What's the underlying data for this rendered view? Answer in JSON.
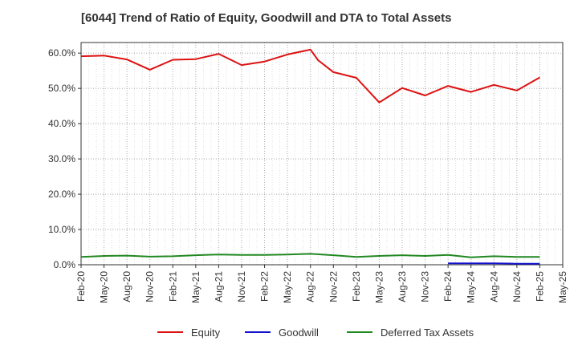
{
  "chart_data": {
    "type": "line",
    "title": "[6044]  Trend of Ratio of Equity, Goodwill and DTA to Total Assets",
    "xlabel": "",
    "ylabel": "",
    "ylim": [
      0,
      63
    ],
    "yticks": [
      0,
      10,
      20,
      30,
      40,
      50,
      60
    ],
    "ytick_labels": [
      "0.0%",
      "10.0%",
      "20.0%",
      "30.0%",
      "40.0%",
      "50.0%",
      "60.0%"
    ],
    "xtick_labels": [
      "Feb-20",
      "May-20",
      "Aug-20",
      "Nov-20",
      "Feb-21",
      "May-21",
      "Aug-21",
      "Nov-21",
      "Feb-22",
      "May-22",
      "Aug-22",
      "Nov-22",
      "Feb-23",
      "May-23",
      "Aug-23",
      "Nov-23",
      "Feb-24",
      "May-24",
      "Aug-24",
      "Nov-24",
      "Feb-25",
      "May-25"
    ],
    "grid": true,
    "legend_position": "bottom",
    "series": [
      {
        "name": "Equity",
        "color": "#dd1111",
        "x": [
          "Feb-20",
          "May-20",
          "Aug-20",
          "Nov-20",
          "Feb-21",
          "May-21",
          "Aug-21",
          "Nov-21",
          "Feb-22",
          "May-22",
          "Aug-22",
          "Sep-22",
          "Nov-22",
          "Feb-23",
          "May-23",
          "Aug-23",
          "Nov-23",
          "Feb-24",
          "May-24",
          "Aug-24",
          "Nov-24",
          "Feb-25"
        ],
        "values": [
          59.1,
          59.3,
          58.2,
          55.3,
          58.1,
          58.3,
          59.8,
          56.6,
          57.6,
          59.6,
          61.0,
          58.0,
          54.6,
          53.0,
          46.0,
          50.1,
          48.0,
          50.7,
          49.0,
          51.0,
          49.4,
          53.1
        ]
      },
      {
        "name": "Goodwill",
        "color": "#1111cc",
        "x": [
          "Feb-24",
          "May-24",
          "Aug-24",
          "Nov-24",
          "Feb-25"
        ],
        "values": [
          0.4,
          0.4,
          0.4,
          0.3,
          0.3
        ]
      },
      {
        "name": "Deferred Tax Assets",
        "color": "#228822",
        "x": [
          "Feb-20",
          "May-20",
          "Aug-20",
          "Nov-20",
          "Feb-21",
          "May-21",
          "Aug-21",
          "Nov-21",
          "Feb-22",
          "May-22",
          "Aug-22",
          "Nov-22",
          "Feb-23",
          "May-23",
          "Aug-23",
          "Nov-23",
          "Feb-24",
          "May-24",
          "Aug-24",
          "Nov-24",
          "Feb-25"
        ],
        "values": [
          2.2,
          2.5,
          2.6,
          2.3,
          2.4,
          2.7,
          2.9,
          2.8,
          2.8,
          2.9,
          3.1,
          2.7,
          2.2,
          2.5,
          2.7,
          2.5,
          2.8,
          2.1,
          2.4,
          2.2,
          2.2
        ]
      }
    ]
  }
}
